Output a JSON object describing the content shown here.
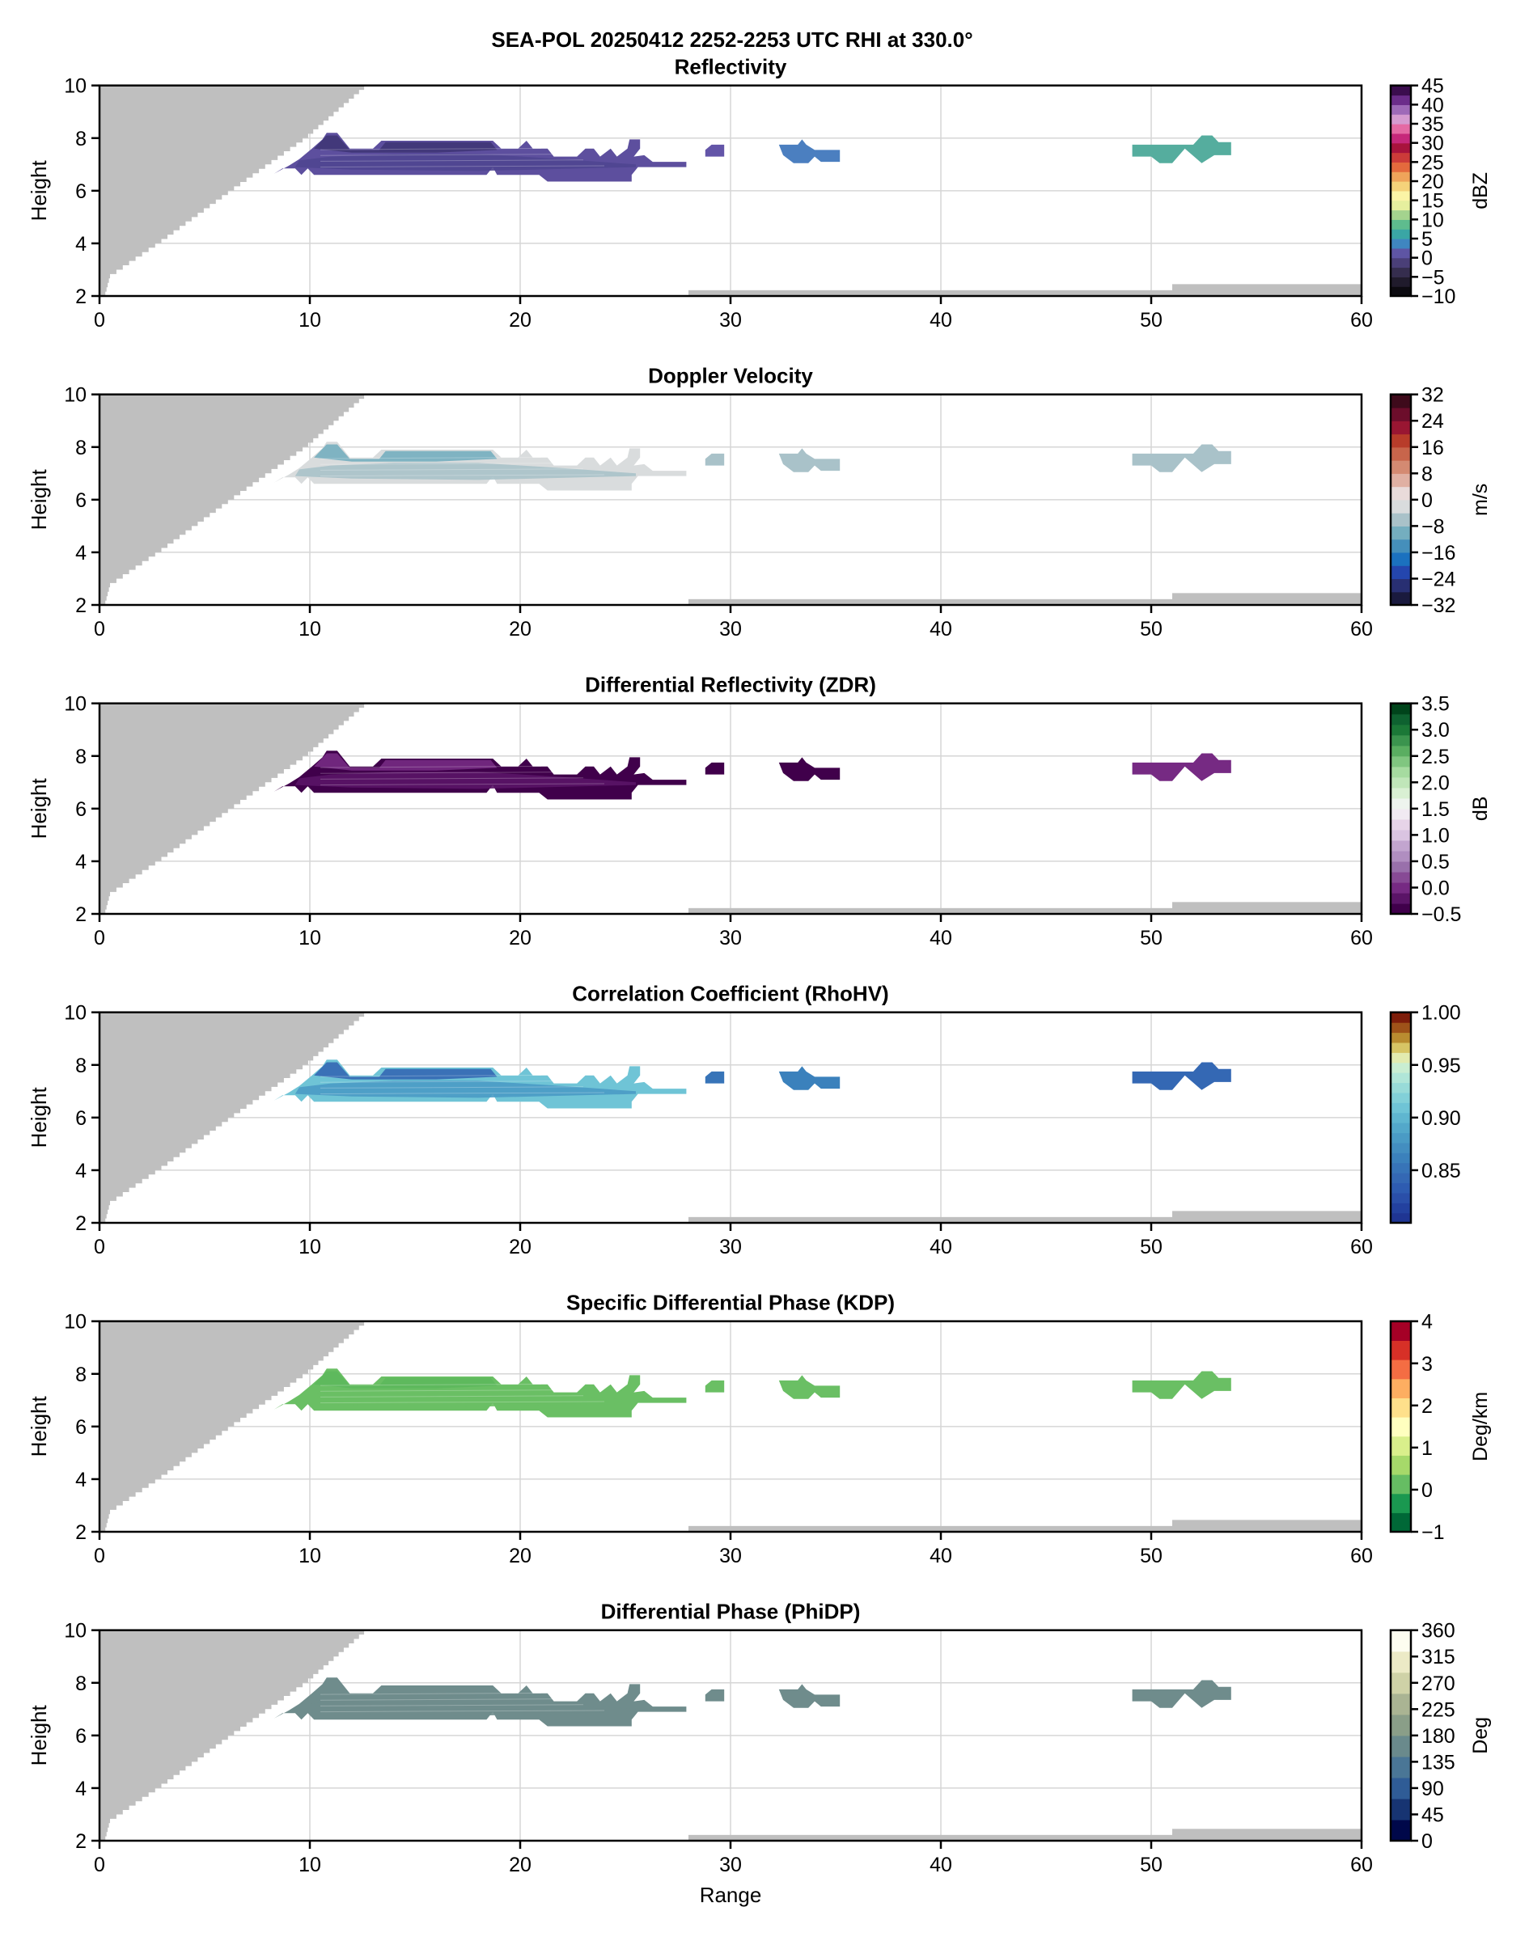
{
  "figure": {
    "suptitle": "SEA-POL 20250412 2252-2253 UTC RHI at 330.0°",
    "xlabel": "Range",
    "ylabel": "Height"
  },
  "chart_data": [
    {
      "type": "heatmap",
      "title": "Reflectivity",
      "xlabel": "Range",
      "ylabel": "Height",
      "xlim": [
        0,
        60
      ],
      "ylim": [
        2,
        10
      ],
      "xticks": [
        0,
        10,
        20,
        30,
        40,
        50,
        60
      ],
      "yticks": [
        2,
        4,
        6,
        8,
        10
      ],
      "grid": true,
      "colorbar": {
        "label": "dBZ",
        "range": [
          -10,
          45
        ],
        "ticks": [
          "45",
          "40",
          "35",
          "30",
          "25",
          "20",
          "15",
          "10",
          "5",
          "0",
          "−5",
          "−10"
        ],
        "tick_values": [
          45,
          40,
          35,
          30,
          25,
          20,
          15,
          10,
          5,
          0,
          -5,
          -10
        ],
        "colors": [
          "#0c0a10",
          "#201b2c",
          "#352d4e",
          "#4a3f78",
          "#5e55a4",
          "#3f86c0",
          "#3aa6a5",
          "#5ebc8e",
          "#a4d38e",
          "#e6ef9e",
          "#fbf4a6",
          "#f5d27a",
          "#efa45a",
          "#e46a3d",
          "#cc3b39",
          "#a8133c",
          "#c6287a",
          "#e46aa4",
          "#d59bd0",
          "#9e6ab8",
          "#6b2d8a",
          "#3b0d4e"
        ]
      },
      "echo_color_notes": "dark-purple to violet (~ -5 to 3 dBZ) main band; blue-teal (~5-10 dBZ) at 33 km and 49-54 km",
      "echo_fill": [
        "#5d4f9e",
        "#4f4590",
        "#3f3575",
        "#2a2440"
      ],
      "blob_fills": [
        "#6355a8",
        "#4b7fc0",
        "#55ad9e"
      ]
    },
    {
      "type": "heatmap",
      "title": "Doppler Velocity",
      "xlabel": "Range",
      "ylabel": "Height",
      "xlim": [
        0,
        60
      ],
      "ylim": [
        2,
        10
      ],
      "xticks": [
        0,
        10,
        20,
        30,
        40,
        50,
        60
      ],
      "yticks": [
        2,
        4,
        6,
        8,
        10
      ],
      "grid": true,
      "colorbar": {
        "label": "m/s",
        "range": [
          -32,
          32
        ],
        "ticks": [
          "32",
          "24",
          "16",
          "8",
          "0",
          "−8",
          "−16",
          "−24",
          "−32"
        ],
        "tick_values": [
          32,
          24,
          16,
          8,
          0,
          -8,
          -16,
          -24,
          -32
        ],
        "colors": [
          "#1a1a3e",
          "#282f72",
          "#2446ae",
          "#1b71bf",
          "#458fbb",
          "#74aebf",
          "#a9c2c9",
          "#d9dcdd",
          "#e9dbda",
          "#e0b0a3",
          "#d48a72",
          "#c8654b",
          "#b83c2a",
          "#991632",
          "#6c0d2b",
          "#3e0a1b"
        ]
      },
      "echo_fill": [
        "#d9dcdd",
        "#a9c2c9",
        "#74aebf"
      ],
      "blob_fills": [
        "#a9c2c9",
        "#a9c2c9",
        "#a9c2c9"
      ]
    },
    {
      "type": "heatmap",
      "title": "Differential Reflectivity (ZDR)",
      "xlabel": "Range",
      "ylabel": "Height",
      "xlim": [
        0,
        60
      ],
      "ylim": [
        2,
        10
      ],
      "xticks": [
        0,
        10,
        20,
        30,
        40,
        50,
        60
      ],
      "yticks": [
        2,
        4,
        6,
        8,
        10
      ],
      "grid": true,
      "colorbar": {
        "label": "dB",
        "range": [
          -0.5,
          3.5
        ],
        "ticks": [
          "3.5",
          "3.0",
          "2.5",
          "2.0",
          "1.5",
          "1.0",
          "0.5",
          "0.0",
          "−0.5"
        ],
        "tick_values": [
          3.5,
          3.0,
          2.5,
          2.0,
          1.5,
          1.0,
          0.5,
          0.0,
          -0.5
        ],
        "colors": [
          "#40004b",
          "#5a1467",
          "#762a83",
          "#874a95",
          "#9970ab",
          "#b08ec0",
          "#c2a5cf",
          "#dac4e1",
          "#e7d4e8",
          "#f1eaf2",
          "#eef4ee",
          "#d9f0d3",
          "#c0e6b9",
          "#a6dba0",
          "#80c680",
          "#5aae61",
          "#3b944e",
          "#1b7837",
          "#0e6230",
          "#00441b"
        ]
      },
      "echo_fill": [
        "#40004b",
        "#5a1467",
        "#762a83"
      ],
      "blob_fills": [
        "#40004b",
        "#40004b",
        "#762a83"
      ]
    },
    {
      "type": "heatmap",
      "title": "Correlation Coefficient (RhoHV)",
      "xlabel": "Range",
      "ylabel": "Height",
      "xlim": [
        0,
        60
      ],
      "ylim": [
        2,
        10
      ],
      "xticks": [
        0,
        10,
        20,
        30,
        40,
        50,
        60
      ],
      "yticks": [
        2,
        4,
        6,
        8,
        10
      ],
      "grid": true,
      "colorbar": {
        "label": "",
        "range": [
          0.8,
          1.0
        ],
        "ticks": [
          "1.00",
          "0.95",
          "0.90",
          "0.85"
        ],
        "tick_values": [
          1.0,
          0.95,
          0.9,
          0.85
        ],
        "colors": [
          "#1f3593",
          "#23419f",
          "#2a4fa9",
          "#2e5cb1",
          "#3468b4",
          "#3774b8",
          "#3b81bc",
          "#438ec0",
          "#4a9bc5",
          "#53a8ca",
          "#5fb6d0",
          "#6fc4d6",
          "#82d0d8",
          "#98dbd8",
          "#b0e6d8",
          "#c9eed2",
          "#e2ebb0",
          "#d7c565",
          "#b98c30",
          "#9e5219",
          "#7d1d0a"
        ]
      },
      "echo_fill": [
        "#6fc4d6",
        "#4a9bc5",
        "#3468b4"
      ],
      "blob_fills": [
        "#3774b8",
        "#3b81bc",
        "#3468b4"
      ]
    },
    {
      "type": "heatmap",
      "title": "Specific Differential Phase (KDP)",
      "xlabel": "Range",
      "ylabel": "Height",
      "xlim": [
        0,
        60
      ],
      "ylim": [
        2,
        10
      ],
      "xticks": [
        0,
        10,
        20,
        30,
        40,
        50,
        60
      ],
      "yticks": [
        2,
        4,
        6,
        8,
        10
      ],
      "grid": true,
      "colorbar": {
        "label": "Deg/km",
        "range": [
          -1,
          4
        ],
        "ticks": [
          "4",
          "3",
          "2",
          "1",
          "0",
          "−1"
        ],
        "tick_values": [
          4,
          3,
          2,
          1,
          0,
          -1
        ],
        "colors": [
          "#006837",
          "#1a9850",
          "#66bd63",
          "#a6d96a",
          "#d9ef8b",
          "#ffffbf",
          "#fee08b",
          "#fdae61",
          "#f46d43",
          "#d73027",
          "#a50026"
        ]
      },
      "echo_fill": [
        "#6abf64",
        "#6abf64",
        "#5db85c"
      ],
      "blob_fills": [
        "#6abf64",
        "#6abf64",
        "#6abf64"
      ]
    },
    {
      "type": "heatmap",
      "title": "Differential Phase (PhiDP)",
      "xlabel": "Range",
      "ylabel": "Height",
      "xlim": [
        0,
        60
      ],
      "ylim": [
        2,
        10
      ],
      "xticks": [
        0,
        10,
        20,
        30,
        40,
        50,
        60
      ],
      "yticks": [
        2,
        4,
        6,
        8,
        10
      ],
      "grid": true,
      "colorbar": {
        "label": "Deg",
        "range": [
          0,
          360
        ],
        "ticks": [
          "360",
          "315",
          "270",
          "225",
          "180",
          "135",
          "90",
          "45",
          "0"
        ],
        "tick_values": [
          360,
          315,
          270,
          225,
          180,
          135,
          90,
          45,
          0
        ],
        "colors": [
          "#00084a",
          "#173472",
          "#2f5c96",
          "#4a7696",
          "#6a8a8c",
          "#8a9e88",
          "#aab493",
          "#cfd2a7",
          "#eceac6",
          "#fdfdf0"
        ]
      },
      "echo_fill": [
        "#6f8c8c",
        "#6f8c8c",
        "#6f8c8c"
      ],
      "blob_fills": [
        "#6f8c8c",
        "#6f8c8c",
        "#6f8c8c"
      ]
    }
  ],
  "shared_geometry_data": {
    "blocked_beam_boundary": [
      [
        0.25,
        2
      ],
      [
        0.5,
        2.75
      ],
      [
        1.5,
        3.3
      ],
      [
        2.8,
        4
      ],
      [
        6.25,
        6
      ],
      [
        9.8,
        8
      ],
      [
        12.7,
        10
      ]
    ],
    "ground_bands": [
      {
        "x_start": 28,
        "x_end": 51,
        "top": 2.22
      },
      {
        "x_start": 51,
        "x_end": 60,
        "top": 2.45
      }
    ],
    "echo_main_outline": [
      [
        8.3,
        6.65
      ],
      [
        9.0,
        6.95
      ],
      [
        9.5,
        7.2
      ],
      [
        9.8,
        7.4
      ],
      [
        10.1,
        7.6
      ],
      [
        10.6,
        7.95
      ],
      [
        10.8,
        8.2
      ],
      [
        11.3,
        8.2
      ],
      [
        11.9,
        7.6
      ],
      [
        13.0,
        7.6
      ],
      [
        13.4,
        7.9
      ],
      [
        18.7,
        7.9
      ],
      [
        19.1,
        7.6
      ],
      [
        19.9,
        7.6
      ],
      [
        20.3,
        7.9
      ],
      [
        20.6,
        7.6
      ],
      [
        21.3,
        7.6
      ],
      [
        21.6,
        7.3
      ],
      [
        22.7,
        7.3
      ],
      [
        23.1,
        7.6
      ],
      [
        23.5,
        7.6
      ],
      [
        23.8,
        7.3
      ],
      [
        24.3,
        7.6
      ],
      [
        24.6,
        7.3
      ],
      [
        25.1,
        7.6
      ],
      [
        25.2,
        7.95
      ],
      [
        25.7,
        7.95
      ],
      [
        25.7,
        7.6
      ],
      [
        25.4,
        7.3
      ],
      [
        25.9,
        7.35
      ],
      [
        26.3,
        7.1
      ],
      [
        27.9,
        7.1
      ],
      [
        27.9,
        6.9
      ],
      [
        25.6,
        6.9
      ],
      [
        25.3,
        6.6
      ],
      [
        25.3,
        6.35
      ],
      [
        21.3,
        6.35
      ],
      [
        20.9,
        6.6
      ],
      [
        18.9,
        6.6
      ],
      [
        18.7,
        6.9
      ],
      [
        18.4,
        6.6
      ],
      [
        10.2,
        6.6
      ],
      [
        9.9,
        6.85
      ],
      [
        9.6,
        6.6
      ],
      [
        9.3,
        6.85
      ],
      [
        8.7,
        6.85
      ]
    ],
    "echo_inner_layers": [
      [
        [
          9.5,
          7.15
        ],
        [
          11.0,
          7.3
        ],
        [
          14.0,
          7.4
        ],
        [
          18.0,
          7.4
        ],
        [
          22.0,
          7.2
        ],
        [
          25.5,
          7.0
        ],
        [
          25.5,
          6.9
        ],
        [
          18.0,
          6.75
        ],
        [
          12.0,
          6.8
        ],
        [
          9.3,
          6.9
        ]
      ],
      [
        [
          10.2,
          7.6
        ],
        [
          10.8,
          8.1
        ],
        [
          11.3,
          8.1
        ],
        [
          11.9,
          7.55
        ],
        [
          13.3,
          7.55
        ],
        [
          13.6,
          7.85
        ],
        [
          18.6,
          7.85
        ],
        [
          18.9,
          7.55
        ],
        [
          16.0,
          7.45
        ],
        [
          12.0,
          7.45
        ]
      ]
    ],
    "echo_blobs": [
      [
        [
          28.8,
          7.3
        ],
        [
          28.8,
          7.55
        ],
        [
          29.1,
          7.75
        ],
        [
          29.7,
          7.75
        ],
        [
          29.7,
          7.3
        ]
      ],
      [
        [
          32.3,
          7.75
        ],
        [
          33.2,
          7.75
        ],
        [
          33.4,
          7.95
        ],
        [
          33.6,
          7.75
        ],
        [
          34.0,
          7.55
        ],
        [
          35.2,
          7.55
        ],
        [
          35.2,
          7.1
        ],
        [
          34.3,
          7.1
        ],
        [
          34.0,
          7.3
        ],
        [
          33.7,
          7.05
        ],
        [
          33.0,
          7.05
        ],
        [
          32.5,
          7.35
        ]
      ],
      [
        [
          49.1,
          7.3
        ],
        [
          49.1,
          7.75
        ],
        [
          51.3,
          7.75
        ],
        [
          52.0,
          7.75
        ],
        [
          52.4,
          8.1
        ],
        [
          52.9,
          8.1
        ],
        [
          53.2,
          7.85
        ],
        [
          53.8,
          7.85
        ],
        [
          53.8,
          7.35
        ],
        [
          53.0,
          7.35
        ],
        [
          52.4,
          7.05
        ],
        [
          51.6,
          7.6
        ],
        [
          51.0,
          7.05
        ],
        [
          50.4,
          7.05
        ],
        [
          50.0,
          7.3
        ]
      ]
    ]
  }
}
